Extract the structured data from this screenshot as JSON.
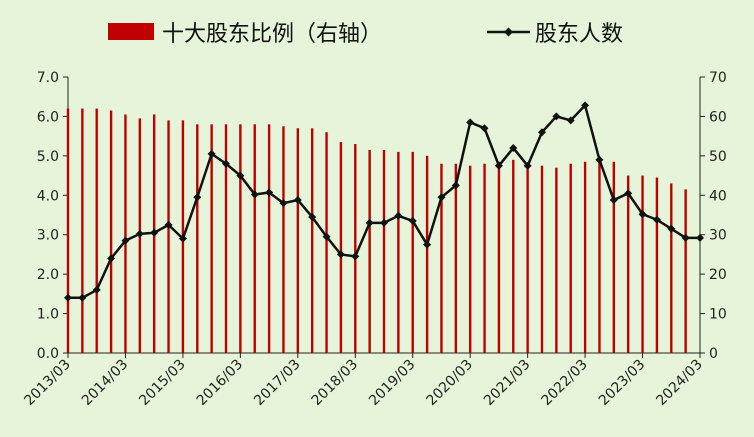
{
  "chart_data": {
    "type": "bar+line",
    "legend": {
      "bar_label": "十大股东比例（右轴）",
      "line_label": "股东人数",
      "placement": "top"
    },
    "x_ticks": [
      "2013/03",
      "2014/03",
      "2015/03",
      "2016/03",
      "2017/03",
      "2018/03",
      "2019/03",
      "2020/03",
      "2021/03",
      "2022/03",
      "2023/03",
      "2024/03"
    ],
    "left_axis": {
      "ylim": [
        0,
        7
      ],
      "ticks": [
        "0.0",
        "1.0",
        "2.0",
        "3.0",
        "4.0",
        "5.0",
        "6.0",
        "7.0"
      ]
    },
    "right_axis": {
      "ylim": [
        0,
        70
      ],
      "ticks": [
        "0",
        "10",
        "20",
        "30",
        "40",
        "50",
        "60",
        "70"
      ]
    },
    "bar_color": "#c00000",
    "line_color": "#111111",
    "series": [
      {
        "name": "十大股东比例（右轴）",
        "axis": "right",
        "kind": "bar",
        "values": [
          62,
          62,
          62,
          61.5,
          60.5,
          59.5,
          60.5,
          59,
          59,
          58,
          58,
          58,
          58,
          58,
          58,
          57.5,
          57,
          57,
          56,
          53.5,
          53,
          51.5,
          51.5,
          51,
          51,
          50,
          48,
          48,
          47.5,
          48,
          48.5,
          49,
          48,
          47.5,
          47,
          48,
          48.5,
          49,
          48.5,
          45,
          45,
          44.5,
          43,
          41.5
        ]
      },
      {
        "name": "股东人数",
        "axis": "left",
        "kind": "line",
        "values": [
          1.4,
          1.4,
          1.6,
          2.4,
          2.85,
          3.02,
          3.05,
          3.25,
          2.9,
          3.95,
          5.05,
          4.8,
          4.5,
          4.02,
          4.07,
          3.8,
          3.88,
          3.45,
          2.95,
          2.5,
          2.45,
          3.3,
          3.3,
          3.48,
          3.35,
          2.75,
          3.95,
          4.25,
          5.85,
          5.7,
          4.75,
          5.2,
          4.75,
          5.6,
          6.0,
          5.9,
          6.28,
          4.9,
          3.88,
          4.05,
          3.52,
          3.38,
          3.15,
          2.92,
          2.92
        ]
      }
    ]
  }
}
